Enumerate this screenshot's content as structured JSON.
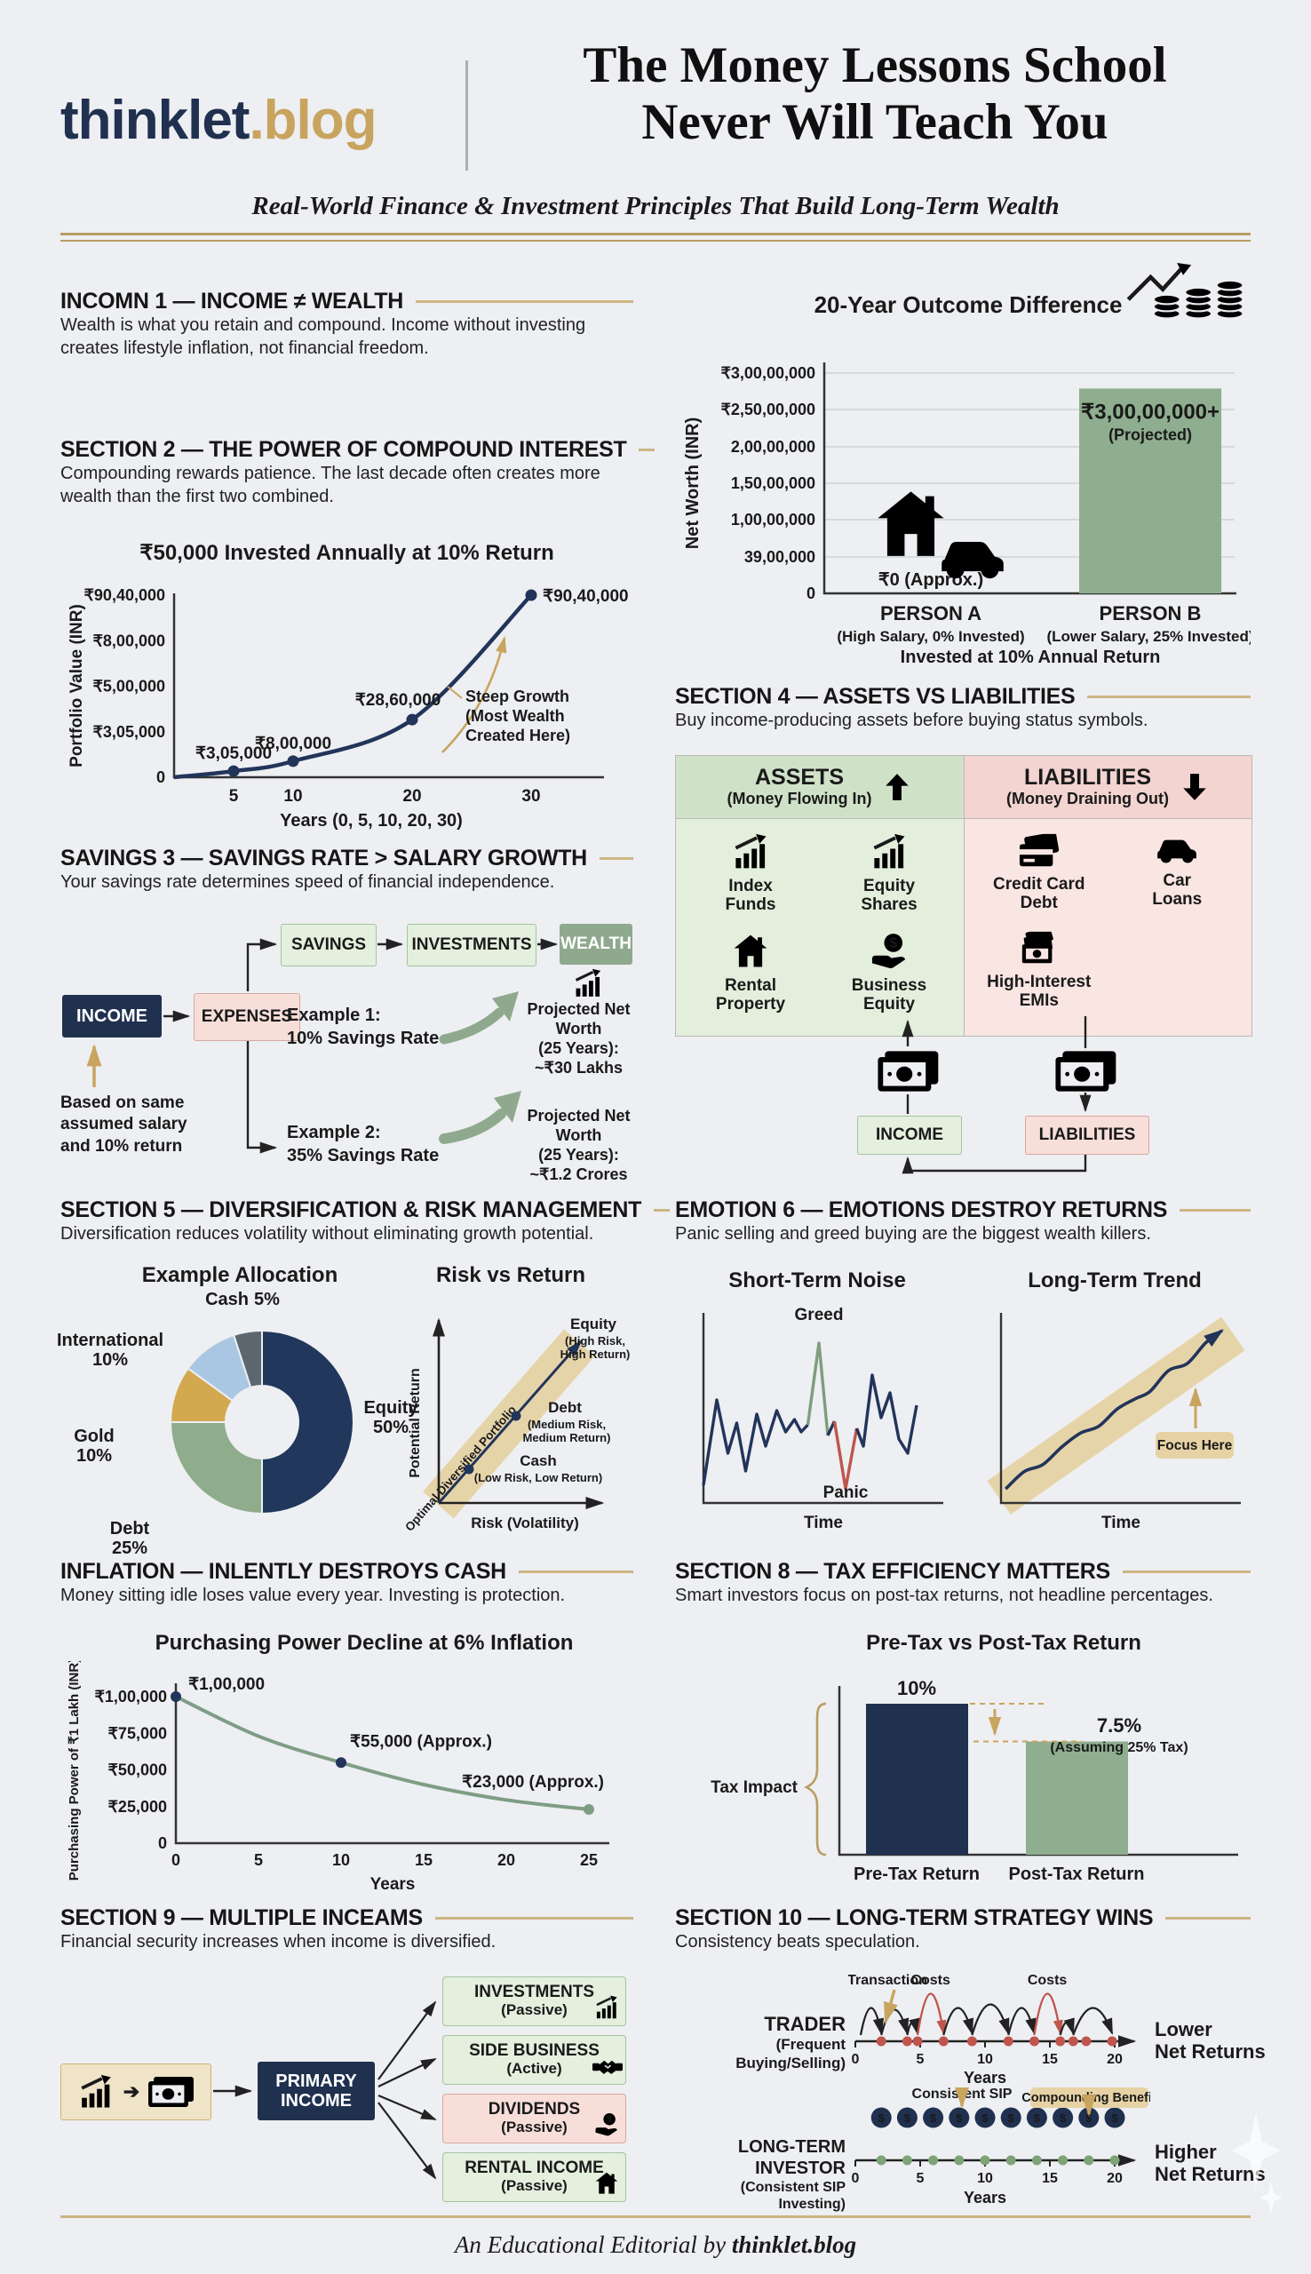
{
  "header": {
    "logo_primary": "thinklet",
    "logo_suffix": ".blog",
    "title_l1": "The Money Lessons School",
    "title_l2": "Never Will Teach You",
    "subtitle": "Real-World Finance & Investment Principles That Build Long-Term Wealth"
  },
  "footer": {
    "prefix": "An Educational Editorial by ",
    "brand": "thinklet.blog"
  },
  "colors": {
    "navy": "#20304f",
    "gold": "#c9a45f",
    "gold_band": "#e6d2a4",
    "sage": "#8fa98f",
    "red": "#c0554d",
    "green_panel": "#e3efdc",
    "pink_panel": "#f9e5e2"
  },
  "sections": {
    "s1": {
      "title": "INCOMN 1 — INCOME ≠ WEALTH",
      "body": "Wealth is what you retain and compound. Income without investing creates lifestyle inflation, not financial freedom."
    },
    "s2": {
      "title": "SECTION 2 — THE POWER OF COMPOUND INTEREST",
      "body": "Compounding rewards patience. The last decade often creates more wealth than the first two combined."
    },
    "s3": {
      "title": "SAVINGS 3 — SAVINGS RATE > SALARY GROWTH",
      "body": "Your savings rate determines speed of financial independence.",
      "income": "INCOME",
      "expenses": "EXPENSES",
      "savings": "SAVINGS",
      "investments": "INVESTMENTS",
      "wealth": "WEALTH",
      "ex1_l1": "Example 1:",
      "ex1_l2": "10% Savings Rate",
      "ex2_l1": "Example 2:",
      "ex2_l2": "35% Savings Rate",
      "r1_l1": "Projected Net Worth",
      "r1_l2": "(25 Years):",
      "r1_l3": "~₹30 Lakhs",
      "r2_l1": "Projected Net Worth",
      "r2_l2": "(25 Years):",
      "r2_l3": "~₹1.2 Crores",
      "note_l1": "Based on same",
      "note_l2": "assumed salary",
      "note_l3": "and 10% return"
    },
    "s4": {
      "title": "SECTION 4 — ASSETS VS LIABILITIES",
      "body": "Buy income-producing assets before buying status symbols.",
      "assets_h": "ASSETS",
      "assets_sub": "(Money Flowing In)",
      "liab_h": "LIABILITIES",
      "liab_sub": "(Money Draining Out)",
      "assets": [
        {
          "l1": "Index",
          "l2": "Funds"
        },
        {
          "l1": "Equity",
          "l2": "Shares"
        },
        {
          "l1": "Rental",
          "l2": "Property"
        },
        {
          "l1": "Business",
          "l2": "Equity"
        }
      ],
      "liabilities": [
        {
          "l1": "Credit Card",
          "l2": "Debt"
        },
        {
          "l1": "Car",
          "l2": "Loans"
        },
        {
          "l1": "High-Interest",
          "l2": "EMIs"
        }
      ],
      "income_box": "INCOME",
      "liab_box": "LIABILITIES"
    },
    "s5": {
      "title": "SECTION 5 — DIVERSIFICATION & RISK MANAGEMENT",
      "body": "Diversification reduces volatility without eliminating growth potential."
    },
    "s6": {
      "title": "EMOTION 6 — EMOTIONS DESTROY RETURNS",
      "body": "Panic selling and greed buying are the biggest wealth killers."
    },
    "s7": {
      "title": "INFLATION — INLENTLY DESTROYS CASH",
      "body": "Money sitting idle loses value every year. Investing is protection."
    },
    "s8": {
      "title": "SECTION 8 — TAX EFFICIENCY MATTERS",
      "body": "Smart investors focus on post-tax returns, not headline percentages."
    },
    "s9": {
      "title": "SECTION 9 — MULTIPLE INCEAMS",
      "body": "Financial security increases when income is diversified.",
      "primary_l1": "PRIMARY",
      "primary_l2": "INCOME",
      "streams": [
        {
          "name": "INVESTMENTS",
          "type": "(Passive)"
        },
        {
          "name": "SIDE BUSINESS",
          "type": "(Active)"
        },
        {
          "name": "DIVIDENDS",
          "type": "(Passive)"
        },
        {
          "name": "RENTAL INCOME",
          "type": "(Passive)"
        }
      ]
    },
    "s10": {
      "title": "SECTION 10 — LONG-TERM STRATEGY WINS",
      "body": "Consistency beats speculation.",
      "trader_l1": "TRADER",
      "trader_l2": "(Frequent Buying/Selling)",
      "investor_l1": "LONG-TERM INVESTOR",
      "investor_l2": "(Consistent SIP Investing)",
      "lower_l1": "Lower",
      "lower_l2": "Net Returns",
      "higher_l1": "Higher",
      "higher_l2": "Net Returns"
    }
  },
  "chart_data": [
    {
      "id": "compound",
      "type": "line",
      "title": "₹50,000 Invested Annually at 10% Return",
      "xlabel": "Years (0, 5, 10, 20, 30)",
      "ylabel": "Portfolio Value (INR)",
      "x": [
        0,
        5,
        10,
        20,
        30
      ],
      "y": [
        0,
        305000,
        800000,
        2860000,
        9040000
      ],
      "ymax": 9040000,
      "point_labels": [
        "",
        "₹3,05,000",
        "₹8,00,000",
        "₹28,60,000",
        "₹90,40,000"
      ],
      "ytick_labels": [
        "₹90,40,000",
        "₹8,00,000",
        "₹5,00,000",
        "₹3,05,000",
        "0"
      ],
      "xticks": [
        5,
        10,
        20,
        30
      ],
      "line_color": "#22345a",
      "annotation_lines": [
        "Steep Growth",
        "(Most Wealth",
        "Created Here)"
      ]
    },
    {
      "id": "outcome",
      "type": "bar",
      "title": "20-Year Outcome Difference",
      "ylabel": "Net Worth (INR)",
      "ytick_labels": [
        "₹3,00,00,000",
        "₹2,50,00,000",
        "2,00,00,000",
        "1,50,00,000",
        "1,00,00,000",
        "39,00,000",
        "0"
      ],
      "a_label": "₹0 (Approx.)",
      "b_label_l1": "₹3,00,00,000+",
      "b_label_l2": "(Projected)",
      "categories": [
        {
          "l1": "PERSON A",
          "l2": "(High Salary, 0% Invested)"
        },
        {
          "l1": "PERSON B",
          "l2": "(Lower Salary, 25% Invested)"
        }
      ],
      "note": "Invested at 10% Annual Return",
      "b_height_frac": 0.93,
      "bar_color": "#8fae90"
    },
    {
      "id": "alloc",
      "type": "pie",
      "title": "Example Allocation",
      "slices": [
        {
          "label": "Equity",
          "pct": 50,
          "pct_label": "50%",
          "color": "#21375c"
        },
        {
          "label": "Debt",
          "pct": 25,
          "pct_label": "25%",
          "color": "#8fac8d"
        },
        {
          "label": "Gold",
          "pct": 10,
          "pct_label": "10%",
          "color": "#d3a94f"
        },
        {
          "label": "International",
          "pct": 10,
          "pct_label": "10%",
          "color": "#a9c7e2"
        },
        {
          "label": "Cash",
          "pct": 5,
          "pct_label": "5%",
          "color": "#5d6770"
        }
      ]
    },
    {
      "id": "riskreturn",
      "type": "scatter",
      "title": "Risk vs Return",
      "xlabel": "Risk (Volatility)",
      "ylabel": "Potential Return",
      "band_label": "Optimal Diversified Portfolio",
      "points": [
        {
          "name": "Cash",
          "desc1": "(Low Risk, Low Return)",
          "desc2": ""
        },
        {
          "name": "Debt",
          "desc1": "(Medium Risk,",
          "desc2": "Medium Return)"
        },
        {
          "name": "Equity",
          "desc1": "(High Risk,",
          "desc2": "High Return)"
        }
      ]
    },
    {
      "id": "noise",
      "type": "line",
      "title": "Short-Term Noise",
      "xlabel": "Time",
      "greed": "Greed",
      "panic": "Panic",
      "segments": [
        {
          "color": "#22345a",
          "pts": [
            [
              0,
              10
            ],
            [
              6,
              58
            ],
            [
              11,
              28
            ],
            [
              15,
              45
            ],
            [
              19,
              18
            ],
            [
              24,
              50
            ],
            [
              28,
              32
            ],
            [
              33,
              52
            ],
            [
              37,
              40
            ],
            [
              41,
              47
            ],
            [
              44,
              40
            ],
            [
              47,
              44
            ]
          ]
        },
        {
          "color": "#7f9d7c",
          "pts": [
            [
              47,
              44
            ],
            [
              52,
              90
            ],
            [
              56,
              38
            ]
          ]
        },
        {
          "color": "#22345a",
          "pts": [
            [
              56,
              38
            ],
            [
              59,
              46
            ]
          ]
        },
        {
          "color": "#c0554d",
          "pts": [
            [
              59,
              46
            ],
            [
              64,
              8
            ],
            [
              69,
              42
            ]
          ]
        },
        {
          "color": "#22345a",
          "pts": [
            [
              69,
              42
            ],
            [
              72,
              32
            ],
            [
              76,
              72
            ],
            [
              80,
              48
            ],
            [
              84,
              62
            ],
            [
              88,
              36
            ],
            [
              92,
              28
            ],
            [
              96,
              55
            ]
          ]
        }
      ]
    },
    {
      "id": "trend",
      "type": "line",
      "title": "Long-Term Trend",
      "xlabel": "Time",
      "focus_label": "Focus Here",
      "pts": [
        [
          2,
          6
        ],
        [
          10,
          16
        ],
        [
          18,
          20
        ],
        [
          26,
          30
        ],
        [
          34,
          38
        ],
        [
          42,
          42
        ],
        [
          50,
          52
        ],
        [
          58,
          58
        ],
        [
          64,
          62
        ],
        [
          72,
          74
        ],
        [
          80,
          78
        ],
        [
          88,
          90
        ],
        [
          95,
          97
        ]
      ]
    },
    {
      "id": "inflation",
      "type": "line",
      "title": "Purchasing Power Decline at 6% Inflation",
      "xlabel": "Years",
      "ylabel": "Purchasing Power of ₹1 Lakh (INR)",
      "x": [
        0,
        5,
        10,
        15,
        20,
        25
      ],
      "y": [
        100000,
        73000,
        55000,
        40000,
        29500,
        23000
      ],
      "ymax": 100000,
      "labeled": [
        0,
        2,
        5
      ],
      "labels": [
        "₹1,00,000",
        "₹55,000 (Approx.)",
        "₹23,000 (Approx.)"
      ],
      "ytick_labels": [
        "₹1,00,000",
        "₹75,000",
        "₹50,000",
        "₹25,000",
        "0"
      ],
      "xticks": [
        0,
        5,
        10,
        15,
        20,
        25
      ],
      "line_color": "#7f9d85"
    },
    {
      "id": "tax",
      "type": "bar",
      "title": "Pre-Tax vs Post-Tax Return",
      "brace_label": "Tax Impact",
      "bars": [
        {
          "label": "Pre-Tax Return",
          "value": 10,
          "display": "10%",
          "color": "#20304f"
        },
        {
          "label": "Post-Tax Return",
          "value": 7.5,
          "display": "7.5%",
          "sub": "(Assuming 25% Tax)",
          "color": "#8fae90"
        }
      ]
    },
    {
      "id": "trader",
      "type": "timeline",
      "xlabel": "Years",
      "ticks": [
        0,
        5,
        10,
        15,
        20
      ],
      "dots": [
        2,
        4,
        4.8,
        6.8,
        9,
        11.8,
        13.8,
        15.8,
        16.8,
        17.8,
        19.8
      ],
      "dot_color": "#c0554d",
      "arcs": [
        [
          -1,
          0,
          30
        ],
        [
          0,
          1,
          28
        ],
        [
          1,
          2,
          14
        ],
        [
          2,
          3,
          46,
          "red"
        ],
        [
          3,
          4,
          30
        ],
        [
          4,
          5,
          34
        ],
        [
          5,
          6,
          30
        ],
        [
          6,
          7,
          46,
          "red"
        ],
        [
          7,
          8,
          14
        ],
        [
          8,
          10,
          30
        ]
      ],
      "labels": {
        "transaction": "Transaction",
        "costs": "Costs"
      }
    },
    {
      "id": "investor",
      "type": "timeline",
      "xlabel": "Years",
      "ticks": [
        0,
        5,
        10,
        15,
        20
      ],
      "dots": [
        2,
        4,
        6,
        8,
        10,
        12,
        14,
        16,
        18,
        20
      ],
      "dot_color": "#7da377",
      "coin_color": "#20304f",
      "coin_symbol": "$",
      "labels": {
        "sip": "Consistent SIP",
        "benefit": "Compounding Benefit"
      }
    }
  ]
}
